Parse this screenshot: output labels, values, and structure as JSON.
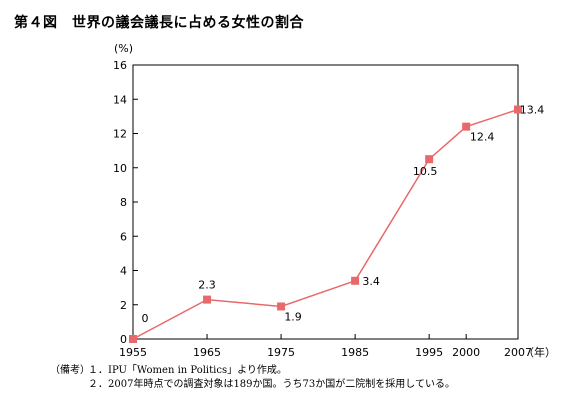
{
  "figure": {
    "title": "第４図　世界の議会議長に占める女性の割合"
  },
  "chart_data": {
    "type": "line",
    "x": [
      1955,
      1965,
      1975,
      1985,
      1995,
      2000,
      2007
    ],
    "series": [
      {
        "values": [
          0,
          2.3,
          1.9,
          3.4,
          10.5,
          12.4,
          13.4
        ],
        "color": "#e8696b"
      }
    ],
    "data_labels": [
      "0",
      "2.3",
      "1.9",
      "3.4",
      "10.5",
      "12.4",
      "13.4"
    ],
    "xticks": [
      "1955",
      "1965",
      "1975",
      "1985",
      "1995",
      "2000",
      "2007"
    ],
    "yticks": [
      "0",
      "2",
      "4",
      "6",
      "8",
      "10",
      "12",
      "14",
      "16"
    ],
    "xlim": [
      1955,
      2007
    ],
    "ylim": [
      0,
      16
    ],
    "xlabel": "（年）",
    "ylabel": "(%)",
    "grid": false,
    "legend": "none"
  },
  "notes": {
    "label": "（備考）",
    "items": [
      "１．IPU「Women in Politics」より作成。",
      "２．2007年時点での調査対象は189か国。うち73か国が二院制を採用している。"
    ]
  }
}
